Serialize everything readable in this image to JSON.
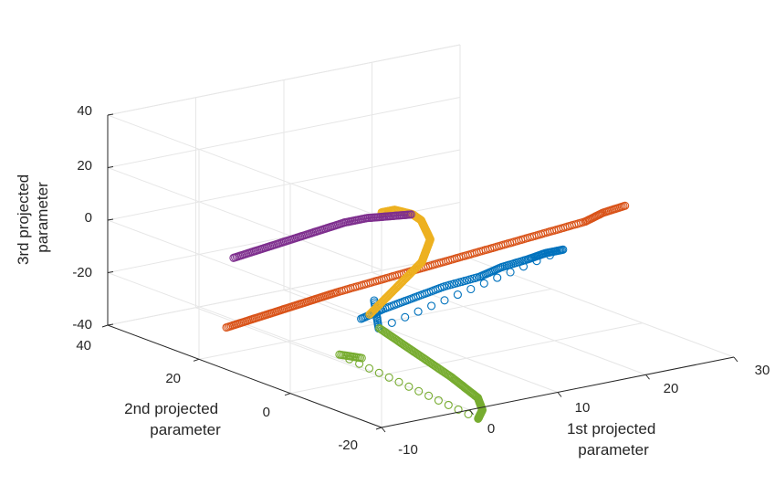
{
  "chart_data": {
    "type": "scatter3d",
    "xlabel": [
      "1st projected",
      "parameter"
    ],
    "ylabel": [
      "2nd projected",
      "parameter"
    ],
    "zlabel": [
      "3rd projected",
      "parameter"
    ],
    "xlim": [
      -10,
      30
    ],
    "ylim": [
      -20,
      40
    ],
    "zlim": [
      -40,
      40
    ],
    "xticks": [
      "-10",
      "0",
      "10",
      "20",
      "30"
    ],
    "yticks": [
      "-20",
      "0",
      "20",
      "40"
    ],
    "zticks": [
      "-40",
      "-20",
      "0",
      "20",
      "40"
    ],
    "grid": true,
    "marker": "circle",
    "colors": [
      "#0072BD",
      "#D95319",
      "#EDB120",
      "#7E2F8E",
      "#77AC30"
    ],
    "series": [
      {
        "color": "#0072BD",
        "points": [
          [
            -3,
            -2,
            -15
          ],
          [
            0,
            -1,
            -14
          ],
          [
            4,
            0,
            -13
          ],
          [
            8,
            1,
            -12
          ],
          [
            12,
            1,
            -11
          ],
          [
            15,
            2,
            -10
          ],
          [
            18,
            2,
            -9
          ],
          [
            20,
            2,
            -8
          ],
          [
            22,
            2,
            -8
          ],
          [
            -1,
            -2,
            -20
          ],
          [
            -1,
            -1,
            -10
          ]
        ]
      },
      {
        "color": "#D95319",
        "points": [
          [
            -10,
            14,
            -24
          ],
          [
            -8,
            13,
            -22
          ],
          [
            -6,
            12,
            -20
          ],
          [
            -4,
            11,
            -18
          ],
          [
            -2,
            10,
            -16
          ],
          [
            0,
            9,
            -14
          ],
          [
            3,
            8,
            -12
          ],
          [
            6,
            7,
            -10
          ],
          [
            9,
            6,
            -8
          ],
          [
            12,
            5,
            -6
          ],
          [
            15,
            4,
            -4
          ],
          [
            18,
            3,
            -2
          ],
          [
            21,
            2,
            0
          ],
          [
            24,
            1,
            2
          ],
          [
            26,
            1,
            4
          ],
          [
            28,
            0,
            6
          ]
        ]
      },
      {
        "color": "#EDB120",
        "points": [
          [
            -1,
            0,
            -16
          ],
          [
            1,
            1,
            -13
          ],
          [
            3,
            2,
            -10
          ],
          [
            5,
            3,
            -7
          ],
          [
            7,
            4,
            -4
          ],
          [
            8,
            5,
            -1
          ],
          [
            9,
            6,
            2
          ],
          [
            9,
            7,
            5
          ],
          [
            9,
            8,
            8
          ],
          [
            8,
            8,
            11
          ],
          [
            6,
            8,
            14
          ],
          [
            4,
            7,
            15
          ]
        ]
      },
      {
        "color": "#7E2F8E",
        "points": [
          [
            -4,
            24,
            -8
          ],
          [
            -2,
            23,
            -6
          ],
          [
            0,
            22,
            -4
          ],
          [
            2,
            21,
            -2
          ],
          [
            4,
            20,
            0
          ],
          [
            6,
            19,
            2
          ],
          [
            8,
            18,
            3
          ],
          [
            10,
            17,
            3
          ],
          [
            12,
            16,
            3
          ]
        ]
      },
      {
        "color": "#77AC30",
        "points": [
          [
            -3,
            -6,
            -16
          ],
          [
            -2,
            -8,
            -20
          ],
          [
            -1,
            -10,
            -24
          ],
          [
            0,
            -12,
            -28
          ],
          [
            1,
            -14,
            -32
          ],
          [
            2,
            -15,
            -36
          ],
          [
            3,
            -16,
            -40
          ],
          [
            3,
            -17,
            -44
          ],
          [
            2,
            -18,
            -46
          ],
          [
            -7,
            -5,
            -24
          ],
          [
            -5,
            -6,
            -26
          ]
        ]
      }
    ]
  }
}
